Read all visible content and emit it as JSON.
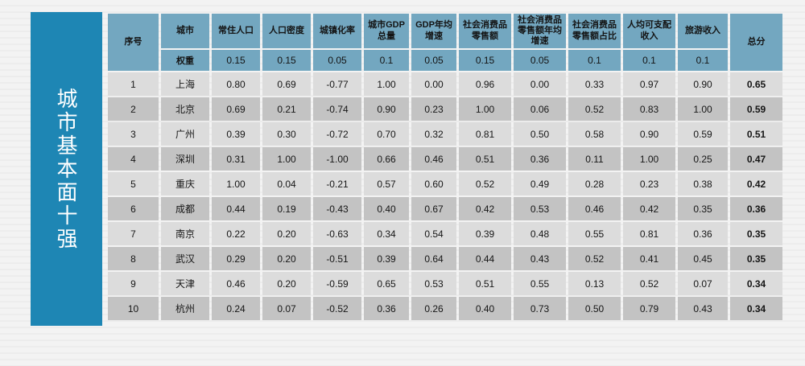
{
  "banner": {
    "title": "城市基本面十强",
    "color": "#1e86b4"
  },
  "table": {
    "header": {
      "index_label": "序号",
      "city_label": "城市",
      "weight_label": "权重",
      "total_label": "总分",
      "metrics": [
        {
          "label": "常住人口",
          "weight": "0.15"
        },
        {
          "label": "人口密度",
          "weight": "0.15"
        },
        {
          "label": "城镇化率",
          "weight": "0.05"
        },
        {
          "label": "城市GDP总量",
          "weight": "0.1"
        },
        {
          "label": "GDP年均增速",
          "weight": "0.05"
        },
        {
          "label": "社会消费品零售额",
          "weight": "0.15"
        },
        {
          "label": "社会消费品零售额年均增速",
          "weight": "0.05"
        },
        {
          "label": "社会消费品零售额占比",
          "weight": "0.1"
        },
        {
          "label": "人均可支配收入",
          "weight": "0.1"
        },
        {
          "label": "旅游收入",
          "weight": "0.1"
        }
      ]
    },
    "rows": [
      {
        "rank": "1",
        "city": "上海",
        "values": [
          "0.80",
          "0.69",
          "-0.77",
          "1.00",
          "0.00",
          "0.96",
          "0.00",
          "0.33",
          "0.97",
          "0.90"
        ],
        "total": "0.65"
      },
      {
        "rank": "2",
        "city": "北京",
        "values": [
          "0.69",
          "0.21",
          "-0.74",
          "0.90",
          "0.23",
          "1.00",
          "0.06",
          "0.52",
          "0.83",
          "1.00"
        ],
        "total": "0.59"
      },
      {
        "rank": "3",
        "city": "广州",
        "values": [
          "0.39",
          "0.30",
          "-0.72",
          "0.70",
          "0.32",
          "0.81",
          "0.50",
          "0.58",
          "0.90",
          "0.59"
        ],
        "total": "0.51"
      },
      {
        "rank": "4",
        "city": "深圳",
        "values": [
          "0.31",
          "1.00",
          "-1.00",
          "0.66",
          "0.46",
          "0.51",
          "0.36",
          "0.11",
          "1.00",
          "0.25"
        ],
        "total": "0.47"
      },
      {
        "rank": "5",
        "city": "重庆",
        "values": [
          "1.00",
          "0.04",
          "-0.21",
          "0.57",
          "0.60",
          "0.52",
          "0.49",
          "0.28",
          "0.23",
          "0.38"
        ],
        "total": "0.42"
      },
      {
        "rank": "6",
        "city": "成都",
        "values": [
          "0.44",
          "0.19",
          "-0.43",
          "0.40",
          "0.67",
          "0.42",
          "0.53",
          "0.46",
          "0.42",
          "0.35"
        ],
        "total": "0.36"
      },
      {
        "rank": "7",
        "city": "南京",
        "values": [
          "0.22",
          "0.20",
          "-0.63",
          "0.34",
          "0.54",
          "0.39",
          "0.48",
          "0.55",
          "0.81",
          "0.36"
        ],
        "total": "0.35"
      },
      {
        "rank": "8",
        "city": "武汉",
        "values": [
          "0.29",
          "0.20",
          "-0.51",
          "0.39",
          "0.64",
          "0.44",
          "0.43",
          "0.52",
          "0.41",
          "0.45"
        ],
        "total": "0.35"
      },
      {
        "rank": "9",
        "city": "天津",
        "values": [
          "0.46",
          "0.20",
          "-0.59",
          "0.65",
          "0.53",
          "0.51",
          "0.55",
          "0.13",
          "0.52",
          "0.07"
        ],
        "total": "0.34"
      },
      {
        "rank": "10",
        "city": "杭州",
        "values": [
          "0.24",
          "0.07",
          "-0.52",
          "0.36",
          "0.26",
          "0.40",
          "0.73",
          "0.50",
          "0.79",
          "0.43"
        ],
        "total": "0.34"
      }
    ]
  },
  "colors": {
    "banner": "#1e86b4",
    "header_bg": "#73a7c0",
    "row_light": "#dcdcdc",
    "row_dark": "#c3c3c3"
  }
}
